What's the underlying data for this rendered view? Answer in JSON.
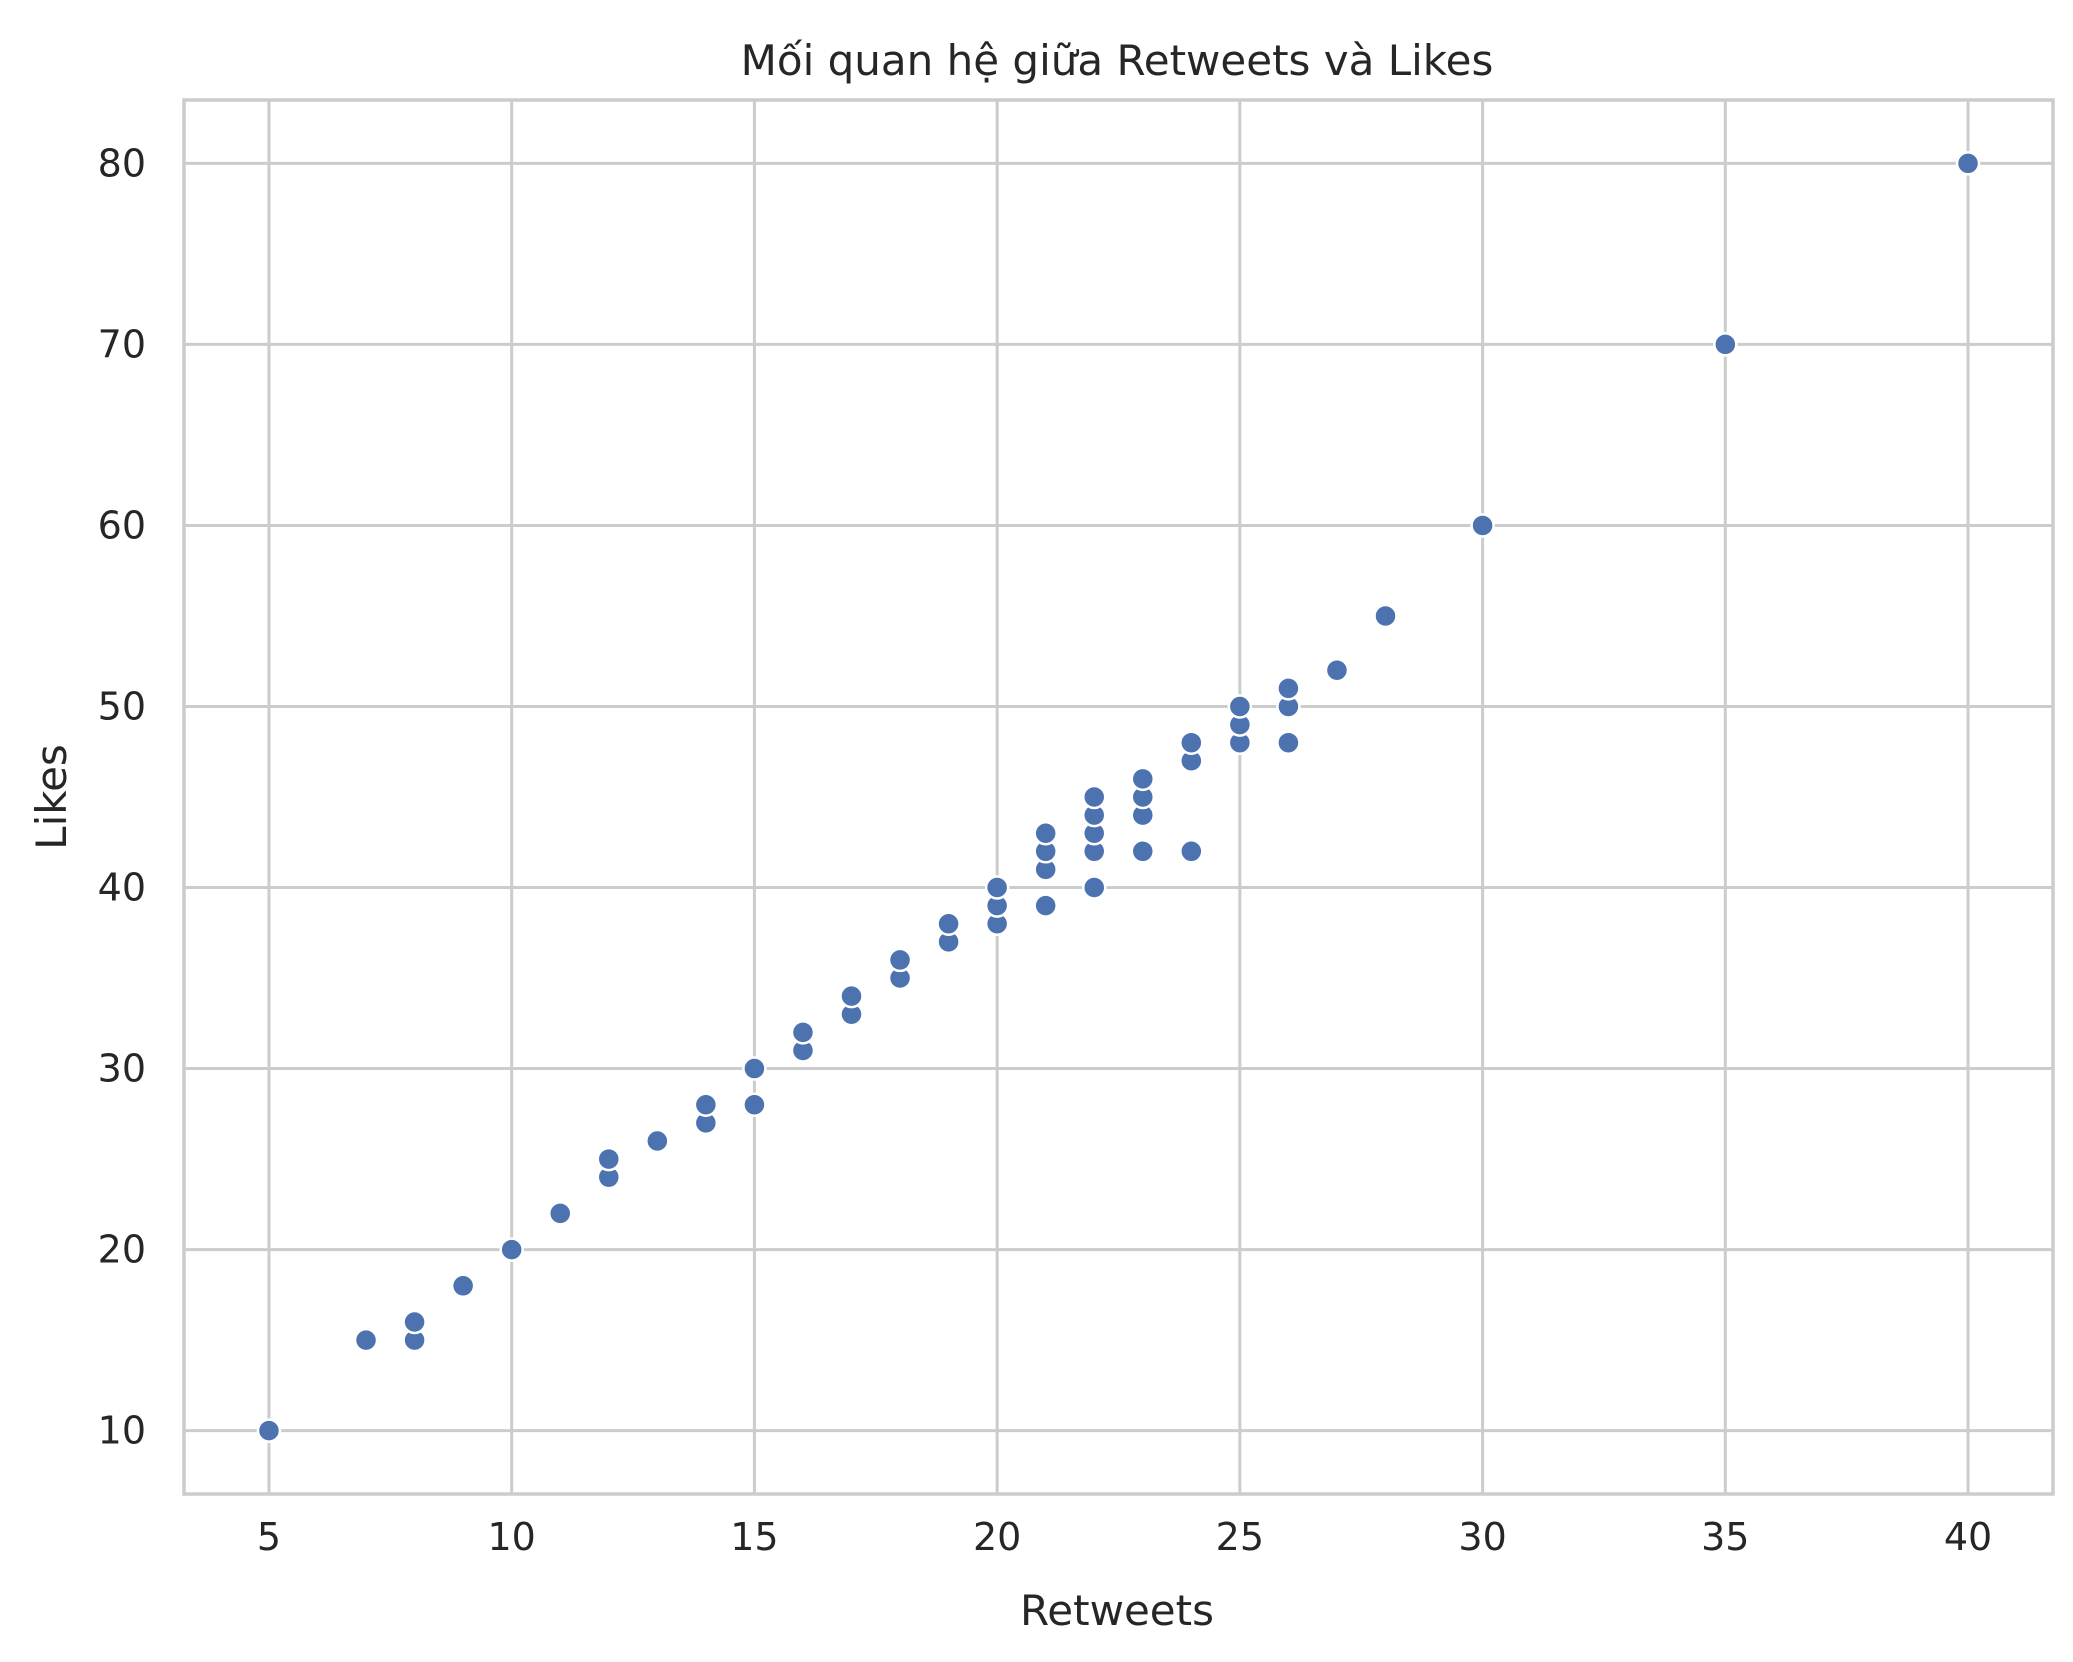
{
  "chart_data": {
    "type": "scatter",
    "title": "Mối quan hệ giữa Retweets và Likes",
    "xlabel": "Retweets",
    "ylabel": "Likes",
    "xlim": [
      3.25,
      41.75
    ],
    "ylim": [
      6.5,
      83.5
    ],
    "xticks": [
      5,
      10,
      15,
      20,
      25,
      30,
      35,
      40
    ],
    "yticks": [
      10,
      20,
      30,
      40,
      50,
      60,
      70,
      80
    ],
    "grid": true,
    "point_color": "#4c72b0",
    "series": [
      {
        "points": [
          [
            5,
            10
          ],
          [
            7,
            15
          ],
          [
            8,
            15
          ],
          [
            8,
            16
          ],
          [
            9,
            18
          ],
          [
            10,
            20
          ],
          [
            11,
            22
          ],
          [
            12,
            24
          ],
          [
            12,
            25
          ],
          [
            13,
            26
          ],
          [
            14,
            27
          ],
          [
            14,
            28
          ],
          [
            15,
            28
          ],
          [
            15,
            30
          ],
          [
            16,
            31
          ],
          [
            16,
            32
          ],
          [
            17,
            33
          ],
          [
            17,
            34
          ],
          [
            18,
            35
          ],
          [
            18,
            36
          ],
          [
            19,
            37
          ],
          [
            19,
            38
          ],
          [
            20,
            38
          ],
          [
            20,
            39
          ],
          [
            20,
            40
          ],
          [
            21,
            39
          ],
          [
            21,
            41
          ],
          [
            21,
            42
          ],
          [
            21,
            43
          ],
          [
            22,
            40
          ],
          [
            22,
            42
          ],
          [
            22,
            43
          ],
          [
            22,
            44
          ],
          [
            22,
            45
          ],
          [
            23,
            42
          ],
          [
            23,
            44
          ],
          [
            23,
            45
          ],
          [
            23,
            46
          ],
          [
            24,
            42
          ],
          [
            24,
            47
          ],
          [
            24,
            48
          ],
          [
            25,
            48
          ],
          [
            25,
            49
          ],
          [
            25,
            50
          ],
          [
            26,
            48
          ],
          [
            26,
            50
          ],
          [
            26,
            51
          ],
          [
            27,
            52
          ],
          [
            28,
            55
          ],
          [
            30,
            60
          ],
          [
            35,
            70
          ],
          [
            40,
            80
          ]
        ]
      }
    ]
  }
}
